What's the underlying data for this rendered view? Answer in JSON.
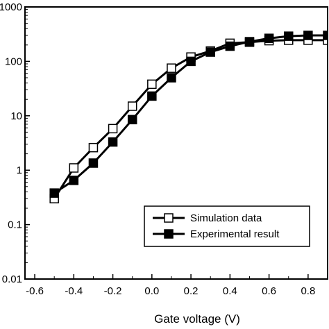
{
  "chart_data": {
    "type": "line",
    "title": "",
    "xlabel": "Gate voltage (V)",
    "ylabel": "",
    "xlim": [
      -0.65,
      0.9
    ],
    "ylim": [
      0.01,
      1000
    ],
    "yscale": "log",
    "x_ticks": [
      -0.6,
      -0.4,
      -0.2,
      0.0,
      0.2,
      0.4,
      0.6,
      0.8
    ],
    "x_tick_labels": [
      "-0.6",
      "-0.4",
      "-0.2",
      "0.0",
      "0.2",
      "0.4",
      "0.6",
      "0.8"
    ],
    "y_ticks": [
      0.01,
      0.1,
      1,
      10,
      100,
      1000
    ],
    "y_tick_labels": [
      "0.01",
      "0.1",
      "1",
      "10",
      "100",
      "1000"
    ],
    "grid": false,
    "legend_position": "bottom-right",
    "x": [
      -0.5,
      -0.4,
      -0.3,
      -0.2,
      -0.1,
      0.0,
      0.1,
      0.2,
      0.3,
      0.4,
      0.5,
      0.6,
      0.7,
      0.8,
      0.9
    ],
    "series": [
      {
        "name": "Simulation data",
        "marker": "open-square",
        "color": "#000000",
        "values": [
          0.3,
          1.1,
          2.6,
          5.8,
          15,
          38,
          75,
          120,
          155,
          215,
          225,
          240,
          245,
          245,
          245
        ]
      },
      {
        "name": "Experimental result",
        "marker": "filled-square",
        "color": "#000000",
        "values": [
          0.38,
          0.65,
          1.35,
          3.3,
          8.5,
          23,
          50,
          100,
          148,
          190,
          230,
          265,
          290,
          300,
          300
        ]
      }
    ]
  }
}
